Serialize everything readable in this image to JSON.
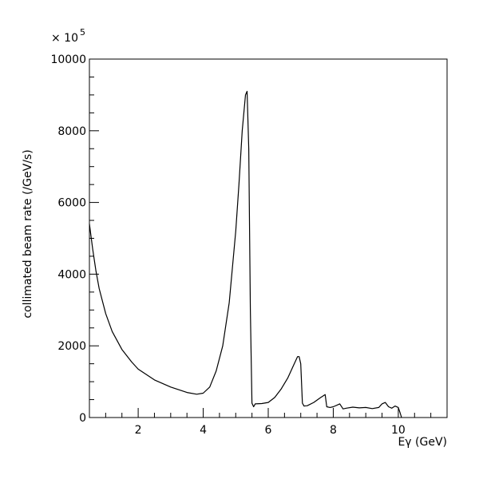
{
  "chart_data": {
    "type": "line",
    "title": "",
    "xlabel": "Eγ (GeV)",
    "ylabel": "collimated beam rate (/GeV/s)",
    "y_multiplier_label": "× 10",
    "y_multiplier_exponent": "5",
    "xlim": [
      0.5,
      11.5
    ],
    "ylim": [
      0,
      10000
    ],
    "x_ticks": [
      2,
      4,
      6,
      8,
      10
    ],
    "x_tick_labels": [
      "2",
      "4",
      "6",
      "8",
      "10"
    ],
    "y_ticks": [
      0,
      2000,
      4000,
      6000,
      8000,
      10000
    ],
    "y_tick_labels": [
      "0",
      "2000",
      "4000",
      "6000",
      "8000",
      "10000"
    ],
    "grid": false,
    "line_color": "#000000",
    "series": [
      {
        "x": [
          0.5,
          0.6,
          0.7,
          0.8,
          1.0,
          1.2,
          1.5,
          1.8,
          2.0,
          2.5,
          3.0,
          3.5,
          3.8,
          4.0,
          4.2,
          4.4,
          4.6,
          4.8,
          5.0,
          5.1,
          5.2,
          5.3,
          5.35,
          5.4,
          5.45,
          5.5,
          5.55,
          5.6,
          5.8,
          6.0,
          6.2,
          6.4,
          6.6,
          6.8,
          6.9,
          6.95,
          7.0,
          7.05,
          7.1,
          7.2,
          7.4,
          7.6,
          7.75,
          7.8,
          7.9,
          8.0,
          8.2,
          8.3,
          8.4,
          8.6,
          8.8,
          9.0,
          9.2,
          9.4,
          9.5,
          9.6,
          9.7,
          9.8,
          9.9,
          10.0,
          10.05,
          10.1
        ],
        "y": [
          5400,
          4700,
          4100,
          3600,
          2900,
          2400,
          1900,
          1550,
          1350,
          1050,
          850,
          700,
          650,
          680,
          850,
          1300,
          2000,
          3200,
          5200,
          6500,
          8000,
          9000,
          9100,
          7500,
          3000,
          400,
          300,
          380,
          390,
          420,
          560,
          800,
          1100,
          1500,
          1700,
          1700,
          1500,
          400,
          320,
          330,
          420,
          550,
          640,
          300,
          280,
          300,
          380,
          240,
          260,
          290,
          270,
          280,
          250,
          280,
          380,
          420,
          300,
          260,
          320,
          280,
          150,
          0
        ]
      }
    ]
  }
}
